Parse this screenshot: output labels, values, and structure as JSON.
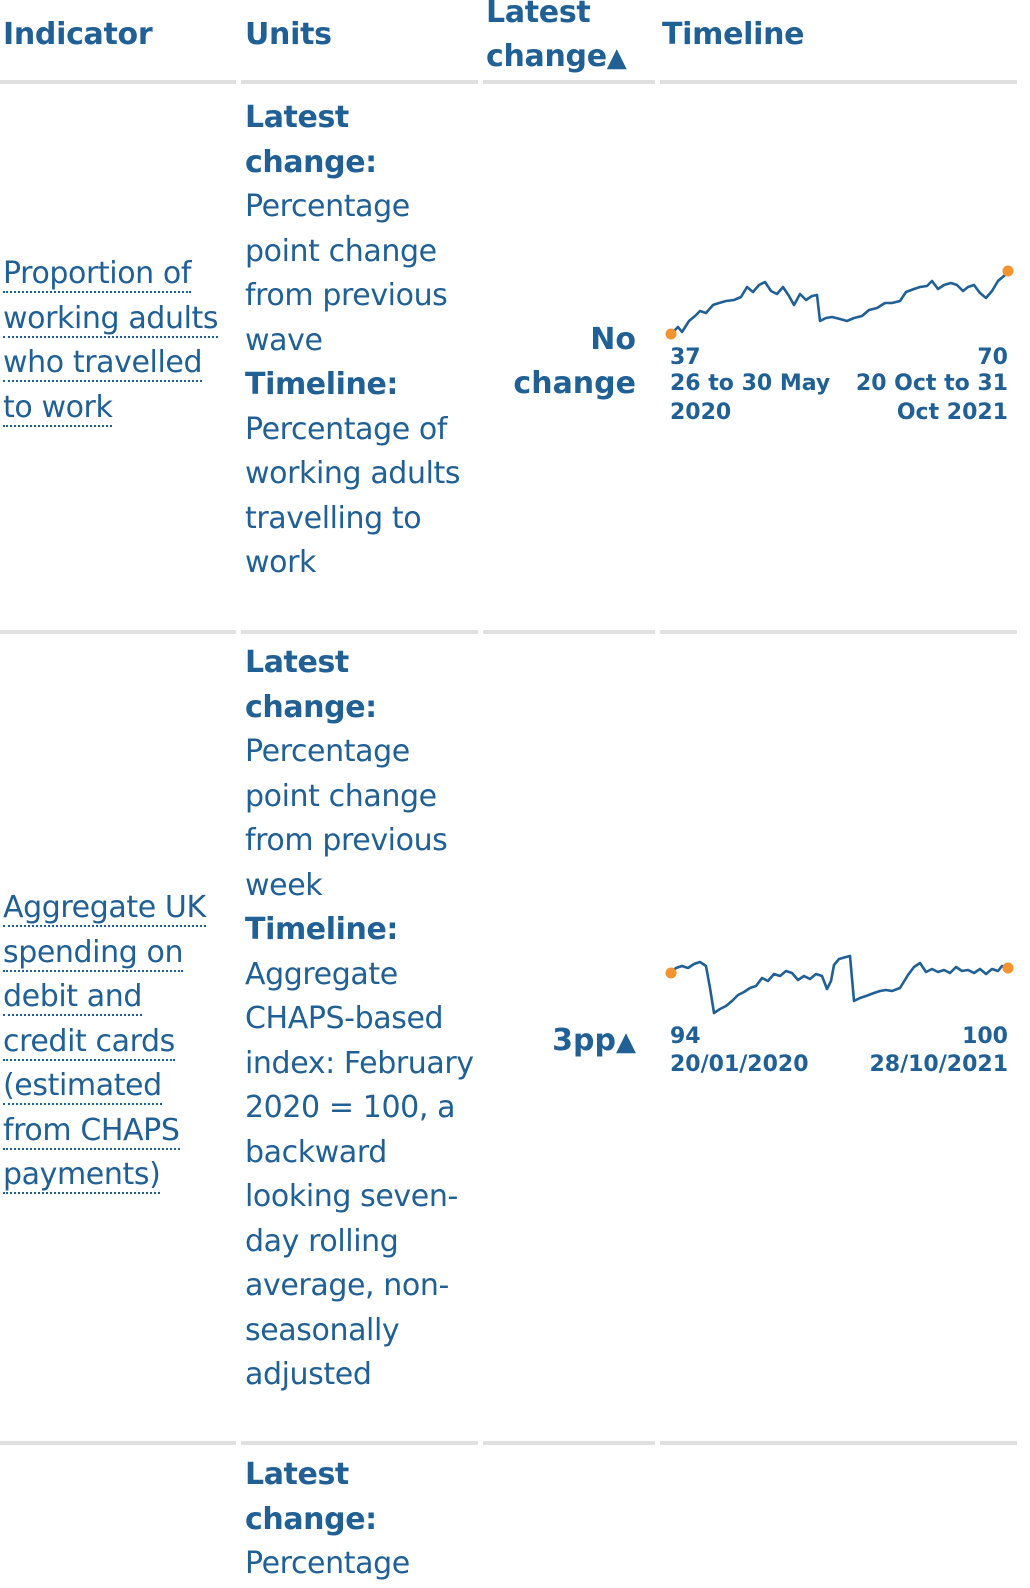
{
  "header": {
    "indicator": "Indicator",
    "units": "Units",
    "latest_change_line1": "Latest",
    "latest_change_line2": "change",
    "sort_icon": "triangle-up",
    "timeline": "Timeline"
  },
  "colors": {
    "text": "#206095",
    "line": "#206095",
    "marker": "#f39431",
    "rule": "#e0e0e0"
  },
  "rows": [
    {
      "indicator": "Proportion of working adults who travelled to work",
      "latest_change_label": "Latest change:",
      "latest_change_units": "Percentage point change from previous wave",
      "timeline_label": "Timeline:",
      "timeline_units": "Percentage of working adults travelling to work",
      "latest_change_line1": "No",
      "latest_change_line2": "change",
      "start_value": "37",
      "start_date_line1": "26 to 30 May",
      "start_date_line2": "2020",
      "end_value": "70",
      "end_date_line1": "20 Oct to 31",
      "end_date_line2": "Oct 2021"
    },
    {
      "indicator": "Aggregate UK spending on debit and credit cards (estimated from CHAPS payments)",
      "latest_change_label": "Latest change:",
      "latest_change_units": "Percentage point change from previous week",
      "timeline_label": "Timeline:",
      "timeline_units": "Aggregate CHAPS-based index: February 2020 = 100, a backward looking seven-day rolling average, non-seasonally adjusted",
      "latest_change_value": "3pp",
      "start_value": "94",
      "start_date": "20/01/2020",
      "end_value": "100",
      "end_date": "28/10/2021"
    },
    {
      "latest_change_label": "Latest change:",
      "latest_change_units": "Percentage"
    }
  ]
}
